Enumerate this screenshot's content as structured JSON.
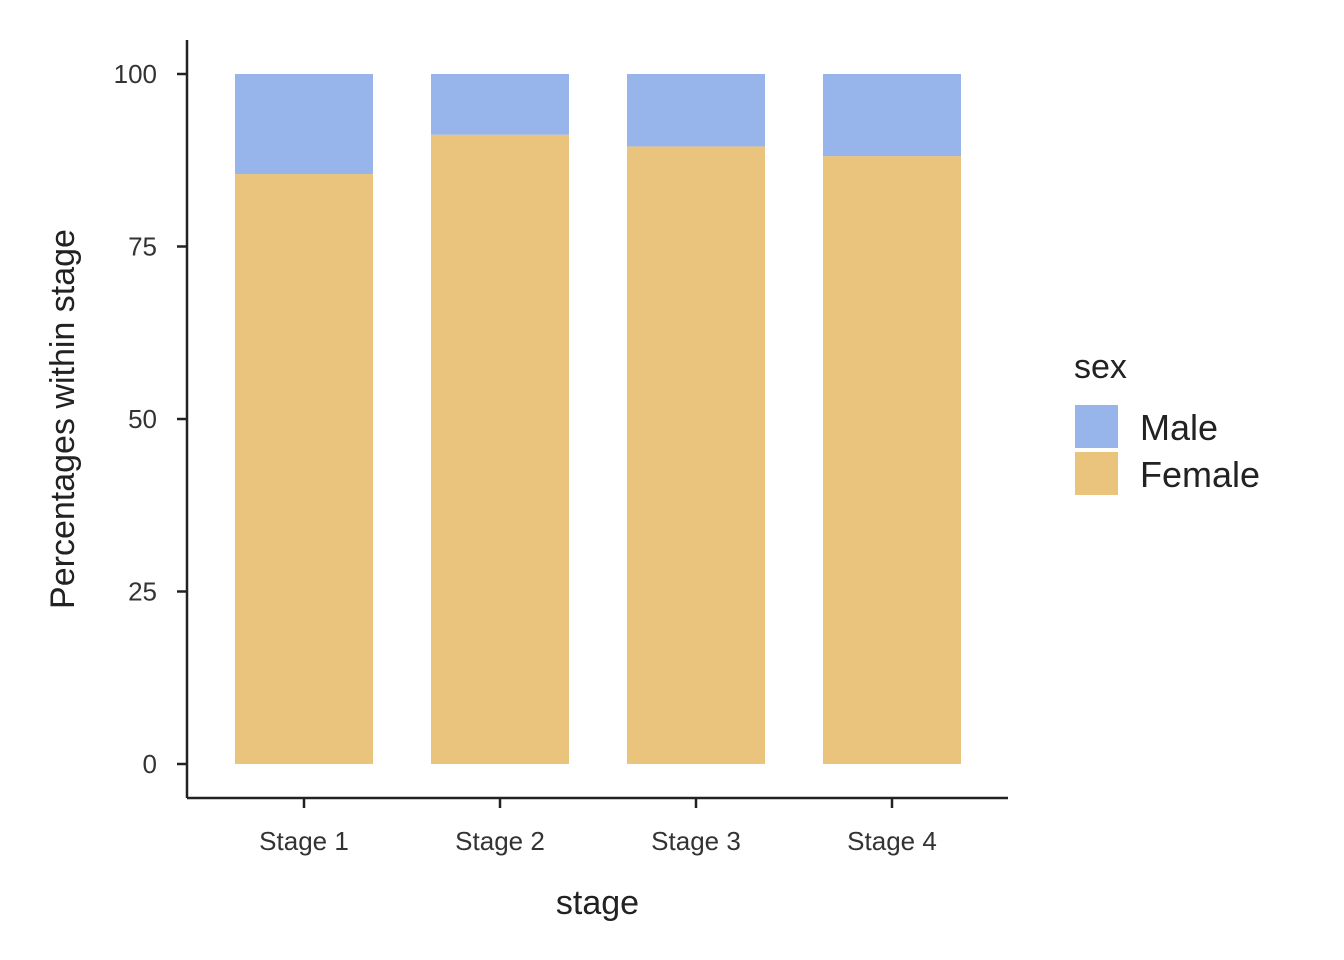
{
  "chart_data": {
    "type": "bar",
    "stacked": true,
    "categories": [
      "Stage 1",
      "Stage 2",
      "Stage 3",
      "Stage 4"
    ],
    "series": [
      {
        "name": "Female",
        "values": [
          85.5,
          91.2,
          89.5,
          88.1
        ],
        "color": "#EAC47C"
      },
      {
        "name": "Male",
        "values": [
          14.5,
          8.8,
          10.5,
          11.9
        ],
        "color": "#97B5EB"
      }
    ],
    "xlabel": "stage",
    "ylabel": "Percentages within stage",
    "ylim": [
      0,
      100
    ],
    "yticks": [
      0,
      25,
      50,
      75,
      100
    ],
    "legend": {
      "title": "sex",
      "position": "right",
      "order": [
        "Male",
        "Female"
      ]
    },
    "grid": false
  }
}
